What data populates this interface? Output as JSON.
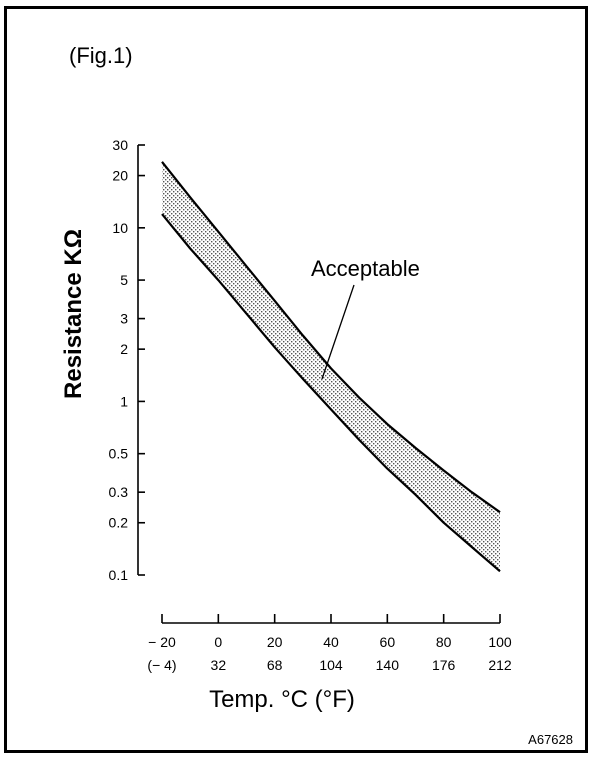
{
  "chart_data": {
    "type": "area",
    "title": "(Fig.1)",
    "xlabel": "Temp. °C (°F)",
    "ylabel": "Resistance KΩ",
    "y_scale": "log",
    "ylim": [
      0.1,
      30
    ],
    "xlim": [
      -20,
      100
    ],
    "x_ticks_c": [
      -20,
      0,
      20,
      40,
      60,
      80,
      100
    ],
    "x_tick_labels_c": [
      "− 20",
      "0",
      "20",
      "40",
      "60",
      "80",
      "100"
    ],
    "x_tick_labels_f": [
      "(− 4)",
      "32",
      "68",
      "104",
      "140",
      "176",
      "212"
    ],
    "y_ticks": [
      30,
      20,
      10,
      5,
      3,
      2,
      1,
      0.5,
      0.3,
      0.2,
      0.1
    ],
    "y_tick_labels": [
      "30",
      "20",
      "10",
      "5",
      "3",
      "2",
      "1",
      "0.5",
      "0.3",
      "0.2",
      "0.1"
    ],
    "grid": false,
    "series": [
      {
        "name": "upper",
        "x": [
          -20,
          -10,
          0,
          10,
          20,
          30,
          40,
          50,
          60,
          70,
          80,
          90,
          100
        ],
        "values": [
          24,
          15,
          9.5,
          6.0,
          3.8,
          2.4,
          1.55,
          1.05,
          0.74,
          0.54,
          0.4,
          0.3,
          0.23
        ]
      },
      {
        "name": "lower",
        "x": [
          -20,
          -10,
          0,
          10,
          20,
          30,
          40,
          50,
          60,
          70,
          80,
          90,
          100
        ],
        "values": [
          12,
          7.6,
          5.0,
          3.2,
          2.05,
          1.35,
          0.9,
          0.6,
          0.41,
          0.29,
          0.2,
          0.145,
          0.105
        ]
      }
    ],
    "annotation": "Acceptable"
  },
  "figure_code": "A67628"
}
